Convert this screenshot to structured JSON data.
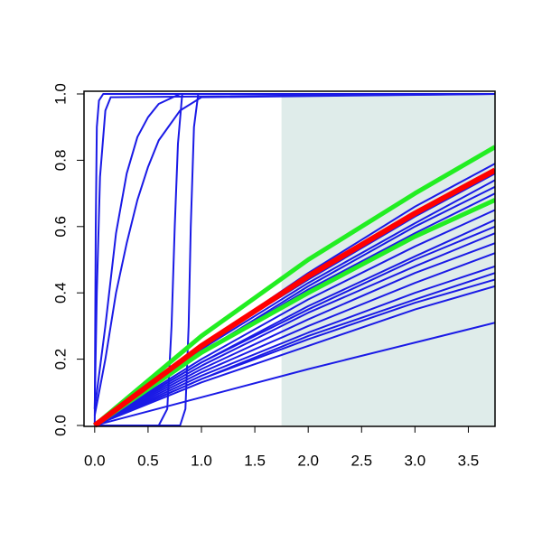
{
  "chart_data": {
    "type": "line",
    "xlim": [
      -0.1,
      3.75
    ],
    "ylim": [
      0,
      1.0
    ],
    "xticks": [
      {
        "value": 0,
        "label": "0.0"
      },
      {
        "value": 0.5,
        "label": "0.5"
      },
      {
        "value": 1,
        "label": "1.0"
      },
      {
        "value": 1.5,
        "label": "1.5"
      },
      {
        "value": 2,
        "label": "2.0"
      },
      {
        "value": 2.5,
        "label": "2.5"
      },
      {
        "value": 3,
        "label": "3.0"
      },
      {
        "value": 3.5,
        "label": "3.5"
      }
    ],
    "yticks": [
      {
        "value": 0,
        "label": "0.0"
      },
      {
        "value": 0.2,
        "label": "0.2"
      },
      {
        "value": 0.4,
        "label": "0.4"
      },
      {
        "value": 0.6,
        "label": "0.6"
      },
      {
        "value": 0.8,
        "label": "0.8"
      },
      {
        "value": 1,
        "label": "1.0"
      }
    ],
    "shaded_region": {
      "xlim": [
        1.75,
        3.75
      ],
      "color": "#dfecea"
    },
    "series": [
      {
        "color": "#1a1ae6",
        "width": 2,
        "x": [
          0,
          0.01,
          0.02,
          0.04,
          0.08,
          3.75
        ],
        "values": [
          0,
          0.6,
          0.9,
          0.98,
          1,
          1
        ]
      },
      {
        "color": "#1a1ae6",
        "width": 2,
        "x": [
          0,
          0.02,
          0.05,
          0.1,
          0.15,
          3.75
        ],
        "values": [
          0.05,
          0.4,
          0.75,
          0.95,
          0.99,
          1
        ]
      },
      {
        "color": "#1a1ae6",
        "width": 2,
        "x": [
          0,
          0.1,
          0.2,
          0.3,
          0.4,
          0.5,
          0.6,
          0.8,
          3.75
        ],
        "values": [
          0.05,
          0.3,
          0.58,
          0.76,
          0.87,
          0.93,
          0.97,
          1,
          1
        ]
      },
      {
        "color": "#1a1ae6",
        "width": 2,
        "x": [
          0,
          0.1,
          0.2,
          0.3,
          0.4,
          0.5,
          0.6,
          0.8,
          1.0,
          3.75
        ],
        "values": [
          0.03,
          0.2,
          0.4,
          0.55,
          0.68,
          0.78,
          0.86,
          0.95,
          0.99,
          1
        ]
      },
      {
        "color": "#1a1ae6",
        "width": 2,
        "x": [
          0,
          0.6,
          0.68,
          0.72,
          0.75,
          0.78,
          0.82,
          3.75
        ],
        "values": [
          0,
          0,
          0.05,
          0.3,
          0.6,
          0.85,
          1,
          1
        ]
      },
      {
        "color": "#1a1ae6",
        "width": 2,
        "x": [
          0,
          0.8,
          0.85,
          0.88,
          0.9,
          0.93,
          0.97,
          3.75
        ],
        "values": [
          0,
          0,
          0.05,
          0.3,
          0.6,
          0.9,
          1,
          1
        ]
      },
      {
        "color": "#1a1ae6",
        "width": 2,
        "x": [
          0,
          1,
          2,
          3,
          3.75
        ],
        "values": [
          0,
          0.085,
          0.17,
          0.25,
          0.31
        ]
      },
      {
        "color": "#1a1ae6",
        "width": 2,
        "x": [
          0,
          1,
          2,
          3,
          3.75
        ],
        "values": [
          0,
          0.13,
          0.24,
          0.35,
          0.42
        ]
      },
      {
        "color": "#1a1ae6",
        "width": 2,
        "x": [
          0,
          1,
          2,
          3,
          3.75
        ],
        "values": [
          0,
          0.14,
          0.26,
          0.37,
          0.44
        ]
      },
      {
        "color": "#1a1ae6",
        "width": 2,
        "x": [
          0,
          1,
          2,
          3,
          3.75
        ],
        "values": [
          0,
          0.14,
          0.27,
          0.38,
          0.46
        ]
      },
      {
        "color": "#1a1ae6",
        "width": 2,
        "x": [
          0,
          1,
          2,
          3,
          3.75
        ],
        "values": [
          0,
          0.15,
          0.28,
          0.4,
          0.48
        ]
      },
      {
        "color": "#1a1ae6",
        "width": 2,
        "x": [
          0,
          1,
          2,
          3,
          3.75
        ],
        "values": [
          0,
          0.16,
          0.3,
          0.43,
          0.52
        ]
      },
      {
        "color": "#1a1ae6",
        "width": 2,
        "x": [
          0,
          1,
          2,
          3,
          3.75
        ],
        "values": [
          0,
          0.17,
          0.32,
          0.46,
          0.55
        ]
      },
      {
        "color": "#1a1ae6",
        "width": 2,
        "x": [
          0,
          1,
          2,
          3,
          3.75
        ],
        "values": [
          0,
          0.18,
          0.34,
          0.48,
          0.58
        ]
      },
      {
        "color": "#1a1ae6",
        "width": 2,
        "x": [
          0,
          1,
          2,
          3,
          3.75
        ],
        "values": [
          0,
          0.19,
          0.35,
          0.5,
          0.6
        ]
      },
      {
        "color": "#1a1ae6",
        "width": 2,
        "x": [
          0,
          1,
          2,
          3,
          3.75
        ],
        "values": [
          0,
          0.19,
          0.36,
          0.51,
          0.62
        ]
      },
      {
        "color": "#1a1ae6",
        "width": 2,
        "x": [
          0,
          1,
          2,
          3,
          3.75
        ],
        "values": [
          0,
          0.2,
          0.38,
          0.54,
          0.65
        ]
      },
      {
        "color": "#1a1ae6",
        "width": 2,
        "x": [
          0,
          1,
          2,
          3,
          3.75
        ],
        "values": [
          0,
          0.22,
          0.41,
          0.58,
          0.7
        ]
      },
      {
        "color": "#1a1ae6",
        "width": 2,
        "x": [
          0,
          1,
          2,
          3,
          3.75
        ],
        "values": [
          0,
          0.22,
          0.42,
          0.6,
          0.72
        ]
      },
      {
        "color": "#1a1ae6",
        "width": 2,
        "x": [
          0,
          1,
          2,
          3,
          3.75
        ],
        "values": [
          0,
          0.23,
          0.43,
          0.61,
          0.74
        ]
      },
      {
        "color": "#1a1ae6",
        "width": 2,
        "x": [
          0,
          1,
          2,
          3,
          3.75
        ],
        "values": [
          0,
          0.24,
          0.44,
          0.63,
          0.76
        ]
      },
      {
        "color": "#1a1ae6",
        "width": 2,
        "x": [
          0,
          1,
          2,
          3,
          3.75
        ],
        "values": [
          0,
          0.24,
          0.46,
          0.66,
          0.79
        ]
      },
      {
        "color": "#22ee22",
        "width": 5,
        "x": [
          0,
          1,
          2,
          3,
          3.75
        ],
        "values": [
          0,
          0.27,
          0.5,
          0.7,
          0.84
        ]
      },
      {
        "color": "#22ee22",
        "width": 5,
        "x": [
          0,
          1,
          2,
          3,
          3.75
        ],
        "values": [
          0,
          0.22,
          0.4,
          0.57,
          0.68
        ]
      },
      {
        "color": "#ff0000",
        "width": 6,
        "x": [
          0,
          1,
          2,
          3,
          3.75
        ],
        "values": [
          0,
          0.24,
          0.45,
          0.64,
          0.77
        ]
      }
    ]
  }
}
